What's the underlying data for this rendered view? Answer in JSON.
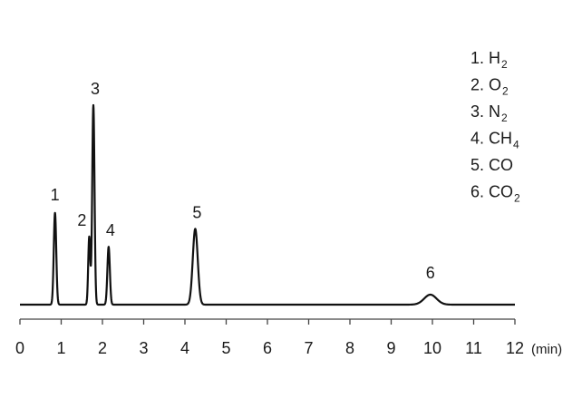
{
  "chart_data": {
    "type": "line",
    "xlabel": "(min)",
    "ylabel": "",
    "xlim": [
      0,
      12
    ],
    "x_ticks": [
      "0",
      "1",
      "2",
      "3",
      "4",
      "5",
      "6",
      "7",
      "8",
      "9",
      "10",
      "11",
      "12"
    ],
    "grid": false,
    "baseline_y": 0,
    "ylim": [
      0,
      100
    ],
    "series": [
      {
        "peaks": [
          {
            "label": "1",
            "rt": 0.85,
            "height": 46,
            "width": 0.03
          },
          {
            "label": "2",
            "rt": 1.68,
            "height": 34,
            "width": 0.025
          },
          {
            "label": "3",
            "rt": 1.78,
            "height": 100,
            "width": 0.028
          },
          {
            "label": "4",
            "rt": 2.15,
            "height": 29,
            "width": 0.03
          },
          {
            "label": "5",
            "rt": 4.25,
            "height": 38,
            "width": 0.06
          },
          {
            "label": "6",
            "rt": 9.95,
            "height": 5,
            "width": 0.15
          }
        ]
      }
    ],
    "legend": {
      "placement": "top-right",
      "entries": [
        {
          "num": "1.",
          "main": "H",
          "sub": "2"
        },
        {
          "num": "2.",
          "main": "O",
          "sub": "2"
        },
        {
          "num": "3.",
          "main": "N",
          "sub": "2"
        },
        {
          "num": "4.",
          "main": "CH",
          "sub": "4"
        },
        {
          "num": "5.",
          "main": "CO",
          "sub": ""
        },
        {
          "num": "6.",
          "main": "CO",
          "sub": "2"
        }
      ]
    }
  }
}
